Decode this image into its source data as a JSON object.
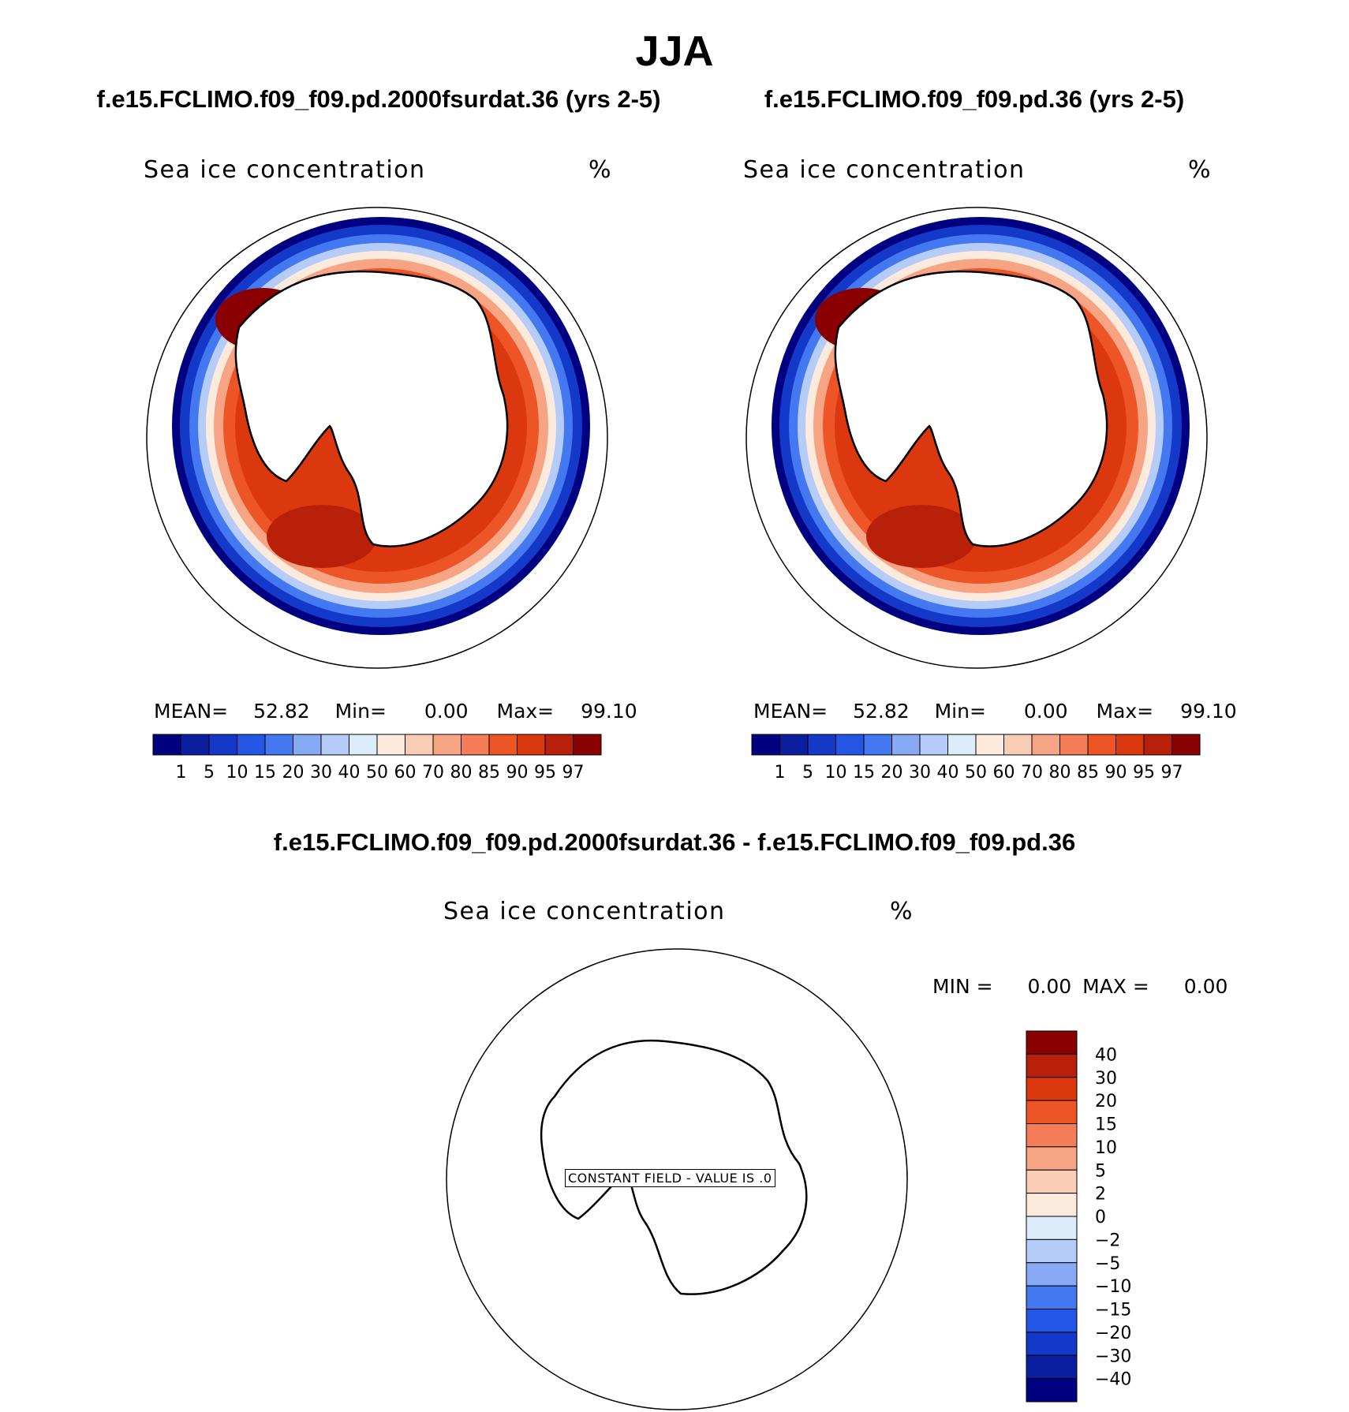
{
  "title": "JJA",
  "colors": [
    "#000080",
    "#0a1ea0",
    "#1438c8",
    "#2456e6",
    "#4478f0",
    "#88aaf5",
    "#b4ccf7",
    "#dcecfb",
    "#fcebdd",
    "#f9ccb6",
    "#f7a484",
    "#f47d57",
    "#ee5526",
    "#dc3810",
    "#b9200a",
    "#8a0000"
  ],
  "panels": [
    {
      "case": "f.e15.FCLIMO.f09_f09.pd.2000fsurdat.36 (yrs 2-5)",
      "variable": "Sea ice concentration",
      "units": "%",
      "stats": {
        "mean_label": "MEAN=",
        "mean": "52.82",
        "min_label": "Min=",
        "min": "0.00",
        "max_label": "Max=",
        "max": "99.10"
      },
      "colorbar_labels": [
        "1",
        "5",
        "10",
        "15",
        "20",
        "30",
        "40",
        "50",
        "60",
        "70",
        "80",
        "85",
        "90",
        "95",
        "97"
      ]
    },
    {
      "case": "f.e15.FCLIMO.f09_f09.pd.36 (yrs 2-5)",
      "variable": "Sea ice concentration",
      "units": "%",
      "stats": {
        "mean_label": "MEAN=",
        "mean": "52.82",
        "min_label": "Min=",
        "min": "0.00",
        "max_label": "Max=",
        "max": "99.10"
      },
      "colorbar_labels": [
        "1",
        "5",
        "10",
        "15",
        "20",
        "30",
        "40",
        "50",
        "60",
        "70",
        "80",
        "85",
        "90",
        "95",
        "97"
      ]
    }
  ],
  "difference": {
    "title": "f.e15.FCLIMO.f09_f09.pd.2000fsurdat.36 - f.e15.FCLIMO.f09_f09.pd.36",
    "variable": "Sea ice concentration",
    "units": "%",
    "stats": {
      "min_label": "MIN =",
      "min": "0.00",
      "max_label": "MAX =",
      "max": "0.00"
    },
    "constant_field_label": "CONSTANT FIELD - VALUE IS .0",
    "colorbar_labels": [
      "40",
      "30",
      "20",
      "15",
      "10",
      "5",
      "2",
      "0",
      "-2",
      "-5",
      "-10",
      "-15",
      "-20",
      "-30",
      "-40"
    ]
  }
}
